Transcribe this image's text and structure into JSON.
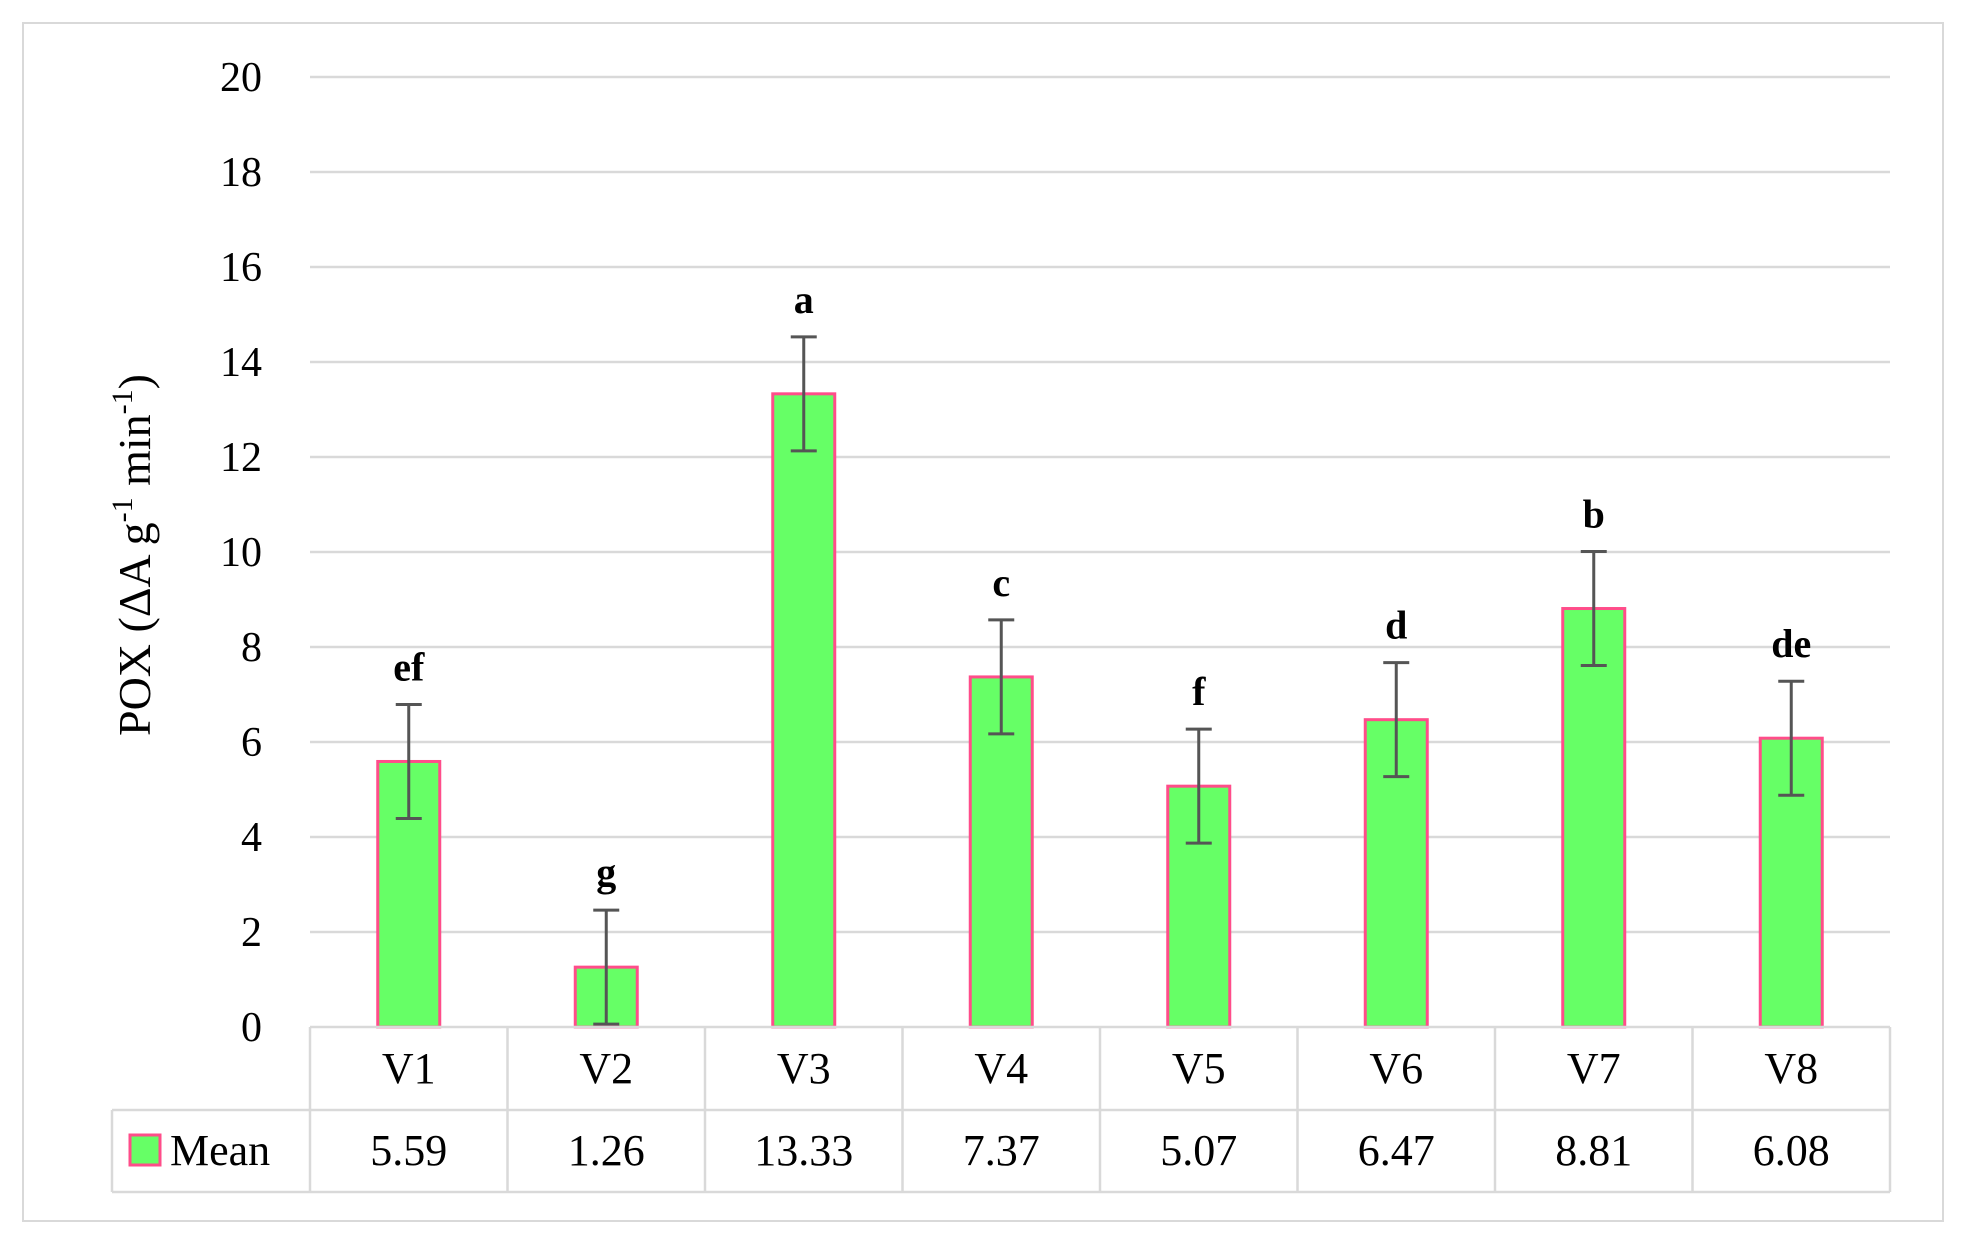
{
  "chart_data": {
    "type": "bar",
    "ylabel": {
      "prefix": "POX (ΔA g",
      "sup1": "-1",
      "mid": " min",
      "sup2": "-1",
      "suffix": ")"
    },
    "ylim": [
      0,
      20
    ],
    "yticks": [
      0,
      2,
      4,
      6,
      8,
      10,
      12,
      14,
      16,
      18,
      20
    ],
    "grid": true,
    "categories": [
      "V1",
      "V2",
      "V3",
      "V4",
      "V5",
      "V6",
      "V7",
      "V8"
    ],
    "series": [
      {
        "name": "Mean",
        "values": [
          5.59,
          1.26,
          13.33,
          7.37,
          5.07,
          6.47,
          8.81,
          6.08
        ],
        "value_labels": [
          "5.59",
          "1.26",
          "13.33",
          "7.37",
          "5.07",
          "6.47",
          "8.81",
          "6.08"
        ],
        "error": [
          1.2,
          1.2,
          1.2,
          1.2,
          1.2,
          1.2,
          1.2,
          1.2
        ],
        "significance": [
          "ef",
          "g",
          "a",
          "c",
          "f",
          "d",
          "b",
          "de"
        ]
      }
    ],
    "colors": {
      "bar_fill": "#66ff66",
      "bar_edge": "#ff4d8a",
      "grid": "#d9d9d9",
      "error_bar": "#555555"
    },
    "data_table": true
  }
}
